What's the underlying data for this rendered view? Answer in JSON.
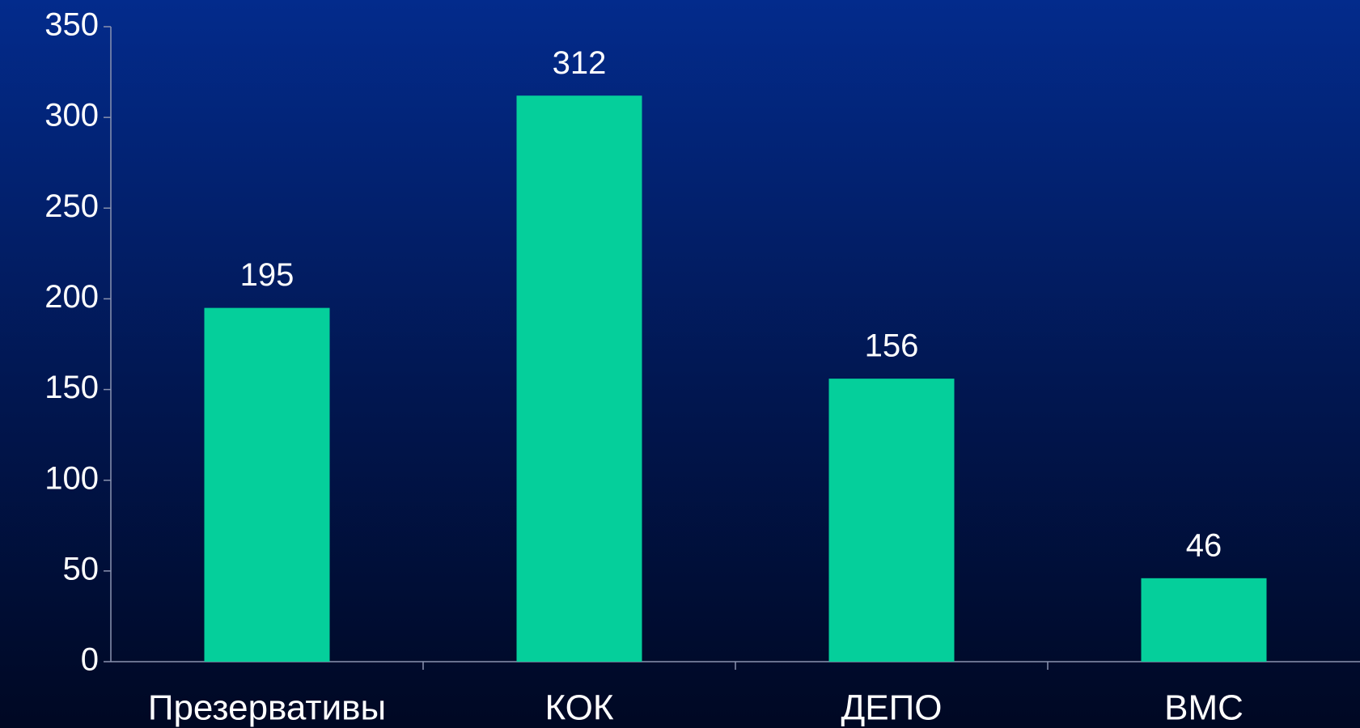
{
  "chart_data": {
    "type": "bar",
    "categories": [
      "Презервативы",
      "КОК",
      "ДЕПО",
      "ВМС"
    ],
    "values": [
      195,
      312,
      156,
      46
    ],
    "color": "#05cf9b",
    "ylim": [
      0,
      350
    ],
    "yticks": [
      0,
      50,
      100,
      150,
      200,
      250,
      300,
      350
    ],
    "grid": false
  }
}
